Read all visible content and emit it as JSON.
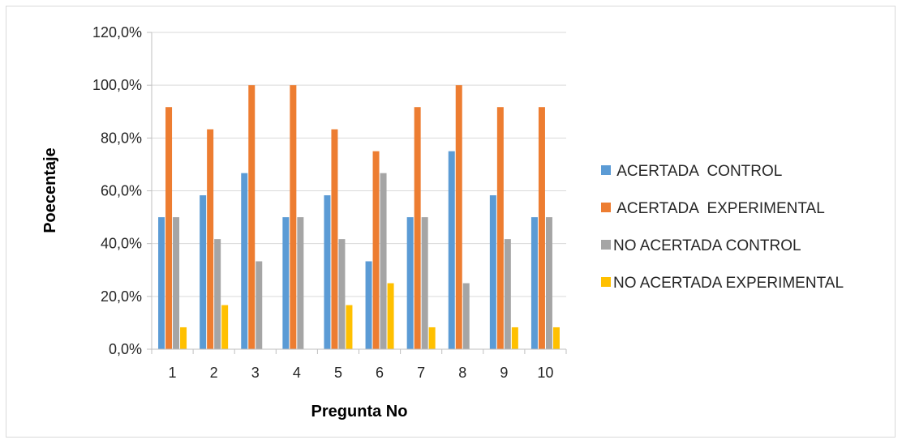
{
  "chart_data": {
    "type": "bar",
    "title": "",
    "xlabel": "Pregunta No",
    "ylabel": "Poecentaje",
    "categories": [
      "1",
      "2",
      "3",
      "4",
      "5",
      "6",
      "7",
      "8",
      "9",
      "10"
    ],
    "y_ticks": [
      "0,0%",
      "20,0%",
      "40,0%",
      "60,0%",
      "80,0%",
      "100,0%",
      "120,0%"
    ],
    "ylim": [
      0,
      120
    ],
    "grid": true,
    "legend_position": "right",
    "series": [
      {
        "name": " ACERTADA  CONTROL",
        "color": "#5b9bd5",
        "values": [
          50.0,
          58.3,
          66.7,
          50.0,
          58.3,
          33.3,
          50.0,
          75.0,
          58.3,
          50.0
        ]
      },
      {
        "name": " ACERTADA  EXPERIMENTAL",
        "color": "#ed7d31",
        "values": [
          91.7,
          83.3,
          100.0,
          100.0,
          83.3,
          75.0,
          91.7,
          100.0,
          91.7,
          91.7
        ]
      },
      {
        "name": "NO ACERTADA CONTROL",
        "color": "#a5a5a5",
        "values": [
          50.0,
          41.7,
          33.3,
          50.0,
          41.7,
          66.7,
          50.0,
          25.0,
          41.7,
          50.0
        ]
      },
      {
        "name": "NO ACERTADA EXPERIMENTAL",
        "color": "#ffc000",
        "values": [
          8.3,
          16.7,
          0,
          0,
          16.7,
          25.0,
          8.3,
          0,
          8.3,
          8.3
        ]
      }
    ]
  }
}
